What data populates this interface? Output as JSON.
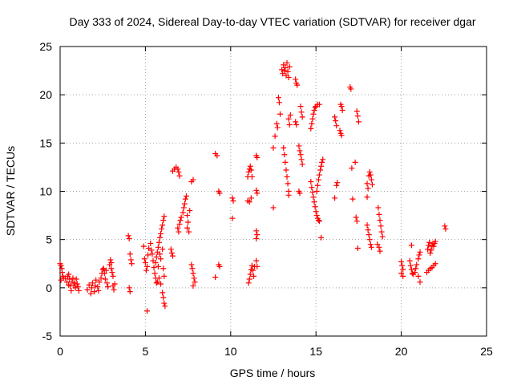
{
  "chart_data": {
    "type": "scatter",
    "title": "Day 333 of 2024, Sidereal Day-to-day VTEC variation (SDTVAR) for receiver dgar",
    "xlabel": "GPS time / hours",
    "ylabel": "SDTVAR / TECUs",
    "xlim": [
      0,
      25
    ],
    "ylim": [
      -5,
      25
    ],
    "xticks": [
      0,
      5,
      10,
      15,
      20,
      25
    ],
    "yticks": [
      -5,
      0,
      5,
      10,
      15,
      20,
      25
    ],
    "grid": true,
    "marker": "+",
    "color": "#ff0000",
    "series": [
      {
        "name": "SDTVAR",
        "points": [
          [
            0.0,
            2.5
          ],
          [
            0.05,
            2.3
          ],
          [
            0.1,
            2.0
          ],
          [
            0.12,
            1.6
          ],
          [
            0.15,
            1.2
          ],
          [
            0.2,
            1.0
          ],
          [
            0.05,
            0.8
          ],
          [
            0.3,
            1.0
          ],
          [
            0.4,
            0.6
          ],
          [
            0.45,
            1.2
          ],
          [
            0.5,
            0.3
          ],
          [
            0.55,
            0.9
          ],
          [
            0.6,
            0.2
          ],
          [
            0.65,
            -0.3
          ],
          [
            0.7,
            0.6
          ],
          [
            0.75,
            1.0
          ],
          [
            0.8,
            0.2
          ],
          [
            0.85,
            0.5
          ],
          [
            0.9,
            0.0
          ],
          [
            0.95,
            0.9
          ],
          [
            1.0,
            0.4
          ],
          [
            1.05,
            0.1
          ],
          [
            1.1,
            -0.3
          ],
          [
            0.5,
            1.4
          ],
          [
            1.6,
            -0.2
          ],
          [
            1.7,
            0.3
          ],
          [
            1.8,
            -0.6
          ],
          [
            1.85,
            0.0
          ],
          [
            1.9,
            0.5
          ],
          [
            2.0,
            -0.4
          ],
          [
            2.05,
            0.2
          ],
          [
            2.1,
            0.8
          ],
          [
            2.2,
            0.1
          ],
          [
            2.25,
            -0.3
          ],
          [
            2.3,
            0.6
          ],
          [
            2.4,
            1.0
          ],
          [
            2.45,
            1.5
          ],
          [
            2.5,
            1.9
          ],
          [
            2.55,
            2.0
          ],
          [
            2.6,
            1.5
          ],
          [
            2.65,
            0.9
          ],
          [
            2.7,
            1.8
          ],
          [
            2.75,
            0.5
          ],
          [
            2.8,
            0.1
          ],
          [
            2.9,
            2.4
          ],
          [
            2.95,
            2.9
          ],
          [
            3.0,
            2.6
          ],
          [
            3.0,
            2.0
          ],
          [
            3.05,
            1.6
          ],
          [
            3.1,
            1.2
          ],
          [
            3.1,
            0.2
          ],
          [
            3.15,
            -0.2
          ],
          [
            3.2,
            0.4
          ],
          [
            4.0,
            5.4
          ],
          [
            4.05,
            5.1
          ],
          [
            4.1,
            3.5
          ],
          [
            4.15,
            2.9
          ],
          [
            4.2,
            2.5
          ],
          [
            4.05,
            0.0
          ],
          [
            4.1,
            -0.4
          ],
          [
            4.9,
            4.3
          ],
          [
            4.95,
            3.0
          ],
          [
            5.0,
            2.6
          ],
          [
            5.05,
            1.8
          ],
          [
            5.1,
            2.2
          ],
          [
            5.15,
            3.4
          ],
          [
            5.2,
            4.1
          ],
          [
            5.1,
            -2.4
          ],
          [
            5.3,
            4.6
          ],
          [
            5.35,
            3.9
          ],
          [
            5.4,
            3.5
          ],
          [
            5.45,
            2.8
          ],
          [
            5.5,
            2.1
          ],
          [
            5.55,
            1.5
          ],
          [
            5.6,
            1.0
          ],
          [
            5.65,
            0.5
          ],
          [
            5.6,
            2.6
          ],
          [
            5.65,
            3.2
          ],
          [
            5.7,
            3.7
          ],
          [
            5.75,
            4.2
          ],
          [
            5.8,
            4.7
          ],
          [
            5.85,
            5.2
          ],
          [
            5.9,
            5.6
          ],
          [
            5.95,
            6.1
          ],
          [
            6.0,
            6.5
          ],
          [
            6.05,
            7.0
          ],
          [
            6.1,
            7.4
          ],
          [
            5.75,
            2.2
          ],
          [
            5.8,
            1.0
          ],
          [
            5.9,
            0.4
          ],
          [
            6.0,
            -0.5
          ],
          [
            6.05,
            -1.0
          ],
          [
            6.1,
            -1.6
          ],
          [
            6.15,
            -1.9
          ],
          [
            5.9,
            3.0
          ],
          [
            6.0,
            4.0
          ],
          [
            6.05,
            2.0
          ],
          [
            6.1,
            1.2
          ],
          [
            5.85,
            3.5
          ],
          [
            5.7,
            0.6
          ],
          [
            6.5,
            4.0
          ],
          [
            6.55,
            3.6
          ],
          [
            6.6,
            3.3
          ],
          [
            6.6,
            12.1
          ],
          [
            6.7,
            12.3
          ],
          [
            6.8,
            12.5
          ],
          [
            6.9,
            12.3
          ],
          [
            6.95,
            12.0
          ],
          [
            7.0,
            11.6
          ],
          [
            6.9,
            6.2
          ],
          [
            6.95,
            5.8
          ],
          [
            7.0,
            6.6
          ],
          [
            7.05,
            7.0
          ],
          [
            7.1,
            7.3
          ],
          [
            7.2,
            7.8
          ],
          [
            7.25,
            8.3
          ],
          [
            7.3,
            8.7
          ],
          [
            7.35,
            9.2
          ],
          [
            7.4,
            9.5
          ],
          [
            7.45,
            7.5
          ],
          [
            7.5,
            6.8
          ],
          [
            7.45,
            6.2
          ],
          [
            7.55,
            5.8
          ],
          [
            7.6,
            8.0
          ],
          [
            7.7,
            11.0
          ],
          [
            7.8,
            11.2
          ],
          [
            7.7,
            2.4
          ],
          [
            7.75,
            2.0
          ],
          [
            7.8,
            1.5
          ],
          [
            7.85,
            1.0
          ],
          [
            7.9,
            0.6
          ],
          [
            7.8,
            0.2
          ],
          [
            9.1,
            13.9
          ],
          [
            9.2,
            13.7
          ],
          [
            9.1,
            1.1
          ],
          [
            9.3,
            10.0
          ],
          [
            9.35,
            9.8
          ],
          [
            9.3,
            2.4
          ],
          [
            9.35,
            2.2
          ],
          [
            10.1,
            9.3
          ],
          [
            10.15,
            9.0
          ],
          [
            10.1,
            7.2
          ],
          [
            11.0,
            11.5
          ],
          [
            11.05,
            12.0
          ],
          [
            11.1,
            12.3
          ],
          [
            11.15,
            12.6
          ],
          [
            11.2,
            12.2
          ],
          [
            11.25,
            11.5
          ],
          [
            11.0,
            9.0
          ],
          [
            11.1,
            8.9
          ],
          [
            11.2,
            9.3
          ],
          [
            11.05,
            0.5
          ],
          [
            11.1,
            0.9
          ],
          [
            11.15,
            1.4
          ],
          [
            11.2,
            1.9
          ],
          [
            11.25,
            2.3
          ],
          [
            11.3,
            1.8
          ],
          [
            11.35,
            1.2
          ],
          [
            11.4,
            2.2
          ],
          [
            11.5,
            13.7
          ],
          [
            11.55,
            13.5
          ],
          [
            11.5,
            10.1
          ],
          [
            11.55,
            9.8
          ],
          [
            11.5,
            5.9
          ],
          [
            11.55,
            5.5
          ],
          [
            11.5,
            5.1
          ],
          [
            11.5,
            2.8
          ],
          [
            11.55,
            2.2
          ],
          [
            12.5,
            14.5
          ],
          [
            12.6,
            15.7
          ],
          [
            12.7,
            17.0
          ],
          [
            12.75,
            16.6
          ],
          [
            12.8,
            19.7
          ],
          [
            12.85,
            19.2
          ],
          [
            12.9,
            18.0
          ],
          [
            12.5,
            8.3
          ],
          [
            13.1,
            14.5
          ],
          [
            13.15,
            13.8
          ],
          [
            13.2,
            13.0
          ],
          [
            13.25,
            12.2
          ],
          [
            13.3,
            11.5
          ],
          [
            13.35,
            10.8
          ],
          [
            13.4,
            10.0
          ],
          [
            13.4,
            9.6
          ],
          [
            13.0,
            22.6
          ],
          [
            13.05,
            22.2
          ],
          [
            13.1,
            23.1
          ],
          [
            13.15,
            22.5
          ],
          [
            13.2,
            22.8
          ],
          [
            13.25,
            22.0
          ],
          [
            13.3,
            23.3
          ],
          [
            13.35,
            22.4
          ],
          [
            13.4,
            21.8
          ],
          [
            13.45,
            22.9
          ],
          [
            13.4,
            17.5
          ],
          [
            13.5,
            17.9
          ],
          [
            13.45,
            16.9
          ],
          [
            13.8,
            21.6
          ],
          [
            13.85,
            21.2
          ],
          [
            13.9,
            21.0
          ],
          [
            14.1,
            18.8
          ],
          [
            14.15,
            18.2
          ],
          [
            14.2,
            17.7
          ],
          [
            13.8,
            17.2
          ],
          [
            13.85,
            16.9
          ],
          [
            14.0,
            14.7
          ],
          [
            14.05,
            14.2
          ],
          [
            14.1,
            13.8
          ],
          [
            14.15,
            13.3
          ],
          [
            14.2,
            12.8
          ],
          [
            14.0,
            10.0
          ],
          [
            14.05,
            9.8
          ],
          [
            14.7,
            11.0
          ],
          [
            14.75,
            10.4
          ],
          [
            14.8,
            9.9
          ],
          [
            14.85,
            9.4
          ],
          [
            14.9,
            8.9
          ],
          [
            14.95,
            8.4
          ],
          [
            15.0,
            7.9
          ],
          [
            15.05,
            7.5
          ],
          [
            15.1,
            7.2
          ],
          [
            15.15,
            7.0
          ],
          [
            15.2,
            6.9
          ],
          [
            15.05,
            10.0
          ],
          [
            15.1,
            10.6
          ],
          [
            15.15,
            11.2
          ],
          [
            15.2,
            11.7
          ],
          [
            15.25,
            12.2
          ],
          [
            15.3,
            12.6
          ],
          [
            15.35,
            13.0
          ],
          [
            15.4,
            13.3
          ],
          [
            14.7,
            16.5
          ],
          [
            14.75,
            17.0
          ],
          [
            14.8,
            17.5
          ],
          [
            14.85,
            18.0
          ],
          [
            14.9,
            18.4
          ],
          [
            14.95,
            18.7
          ],
          [
            15.0,
            18.8
          ],
          [
            15.1,
            19.0
          ],
          [
            15.2,
            19.0
          ],
          [
            15.3,
            5.2
          ],
          [
            16.2,
            10.6
          ],
          [
            16.25,
            10.9
          ],
          [
            16.1,
            9.3
          ],
          [
            16.1,
            17.7
          ],
          [
            16.15,
            17.3
          ],
          [
            16.2,
            16.8
          ],
          [
            16.45,
            19.0
          ],
          [
            16.5,
            18.8
          ],
          [
            16.55,
            18.4
          ],
          [
            16.4,
            16.3
          ],
          [
            16.45,
            16.0
          ],
          [
            16.5,
            15.8
          ],
          [
            17.0,
            20.8
          ],
          [
            17.05,
            20.6
          ],
          [
            17.1,
            12.4
          ],
          [
            17.15,
            9.2
          ],
          [
            17.3,
            13.0
          ],
          [
            17.4,
            18.3
          ],
          [
            17.45,
            17.8
          ],
          [
            17.5,
            17.2
          ],
          [
            17.35,
            7.3
          ],
          [
            17.4,
            6.9
          ],
          [
            17.45,
            4.1
          ],
          [
            18.0,
            6.5
          ],
          [
            18.05,
            6.0
          ],
          [
            18.1,
            5.5
          ],
          [
            18.15,
            5.0
          ],
          [
            18.2,
            4.5
          ],
          [
            18.25,
            4.2
          ],
          [
            18.0,
            10.8
          ],
          [
            18.05,
            10.3
          ],
          [
            18.0,
            9.4
          ],
          [
            18.1,
            11.6
          ],
          [
            18.15,
            12.0
          ],
          [
            18.2,
            11.7
          ],
          [
            18.25,
            11.2
          ],
          [
            18.3,
            10.7
          ],
          [
            18.65,
            8.3
          ],
          [
            18.7,
            7.6
          ],
          [
            18.75,
            7.0
          ],
          [
            18.8,
            6.4
          ],
          [
            18.85,
            5.8
          ],
          [
            18.9,
            5.3
          ],
          [
            18.7,
            4.2
          ],
          [
            18.75,
            3.8
          ],
          [
            18.6,
            4.5
          ],
          [
            20.0,
            2.7
          ],
          [
            20.05,
            2.3
          ],
          [
            20.1,
            1.9
          ],
          [
            20.0,
            1.5
          ],
          [
            20.1,
            1.2
          ],
          [
            20.5,
            2.8
          ],
          [
            20.55,
            2.3
          ],
          [
            20.6,
            1.9
          ],
          [
            20.65,
            1.5
          ],
          [
            20.7,
            1.4
          ],
          [
            20.8,
            1.6
          ],
          [
            20.85,
            2.0
          ],
          [
            20.9,
            2.4
          ],
          [
            21.0,
            3.0
          ],
          [
            21.05,
            3.4
          ],
          [
            21.1,
            3.7
          ],
          [
            21.0,
            1.2
          ],
          [
            21.1,
            0.6
          ],
          [
            20.6,
            4.4
          ],
          [
            21.55,
            4.0
          ],
          [
            21.6,
            4.4
          ],
          [
            21.65,
            4.7
          ],
          [
            21.7,
            3.6
          ],
          [
            21.75,
            3.9
          ],
          [
            21.8,
            4.3
          ],
          [
            21.85,
            4.6
          ],
          [
            21.9,
            4.3
          ],
          [
            21.95,
            4.6
          ],
          [
            22.0,
            4.8
          ],
          [
            21.5,
            1.6
          ],
          [
            21.6,
            1.8
          ],
          [
            21.7,
            2.0
          ],
          [
            21.8,
            2.1
          ],
          [
            21.9,
            2.3
          ],
          [
            22.0,
            2.5
          ],
          [
            22.55,
            6.4
          ],
          [
            22.6,
            6.1
          ]
        ]
      }
    ]
  }
}
